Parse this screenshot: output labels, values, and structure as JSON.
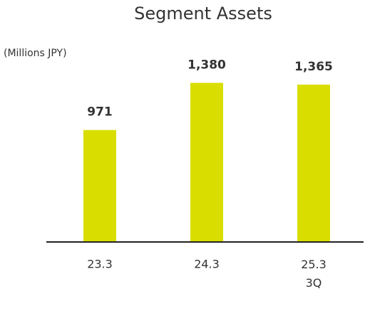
{
  "chart_data": {
    "type": "bar",
    "title": "Segment Assets",
    "unit_label": "(Millions JPY)",
    "categories": [
      "23.3",
      "24.3",
      "25.3\n3Q"
    ],
    "values": [
      971,
      1380,
      1365
    ],
    "value_labels": [
      "971",
      "1,380",
      "1,365"
    ],
    "color": "#d9de00"
  }
}
